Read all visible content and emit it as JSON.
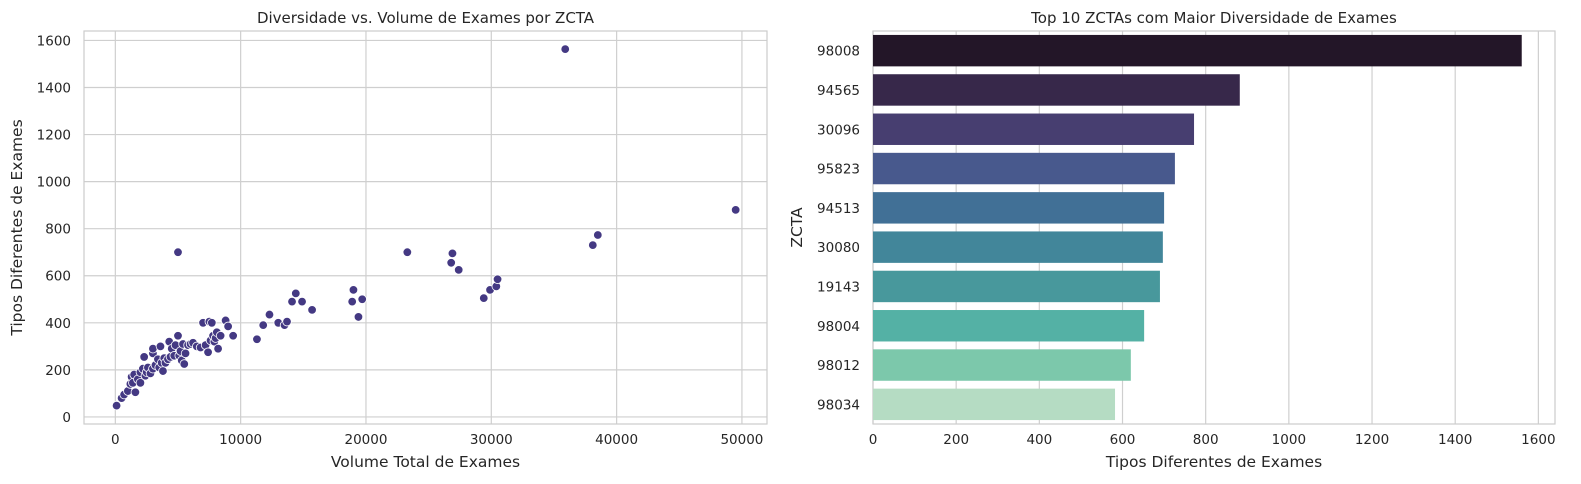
{
  "chart_data": [
    {
      "type": "scatter",
      "title": "Diversidade vs. Volume de Exames por ZCTA",
      "xlabel": "Volume Total de Exames",
      "ylabel": "Tipos Diferentes de Exames",
      "xlim": [
        -2500,
        52000
      ],
      "ylim": [
        -30,
        1640
      ],
      "xticks": [
        0,
        10000,
        20000,
        30000,
        40000,
        50000
      ],
      "xtick_labels": [
        "0",
        "10000",
        "20000",
        "30000",
        "40000",
        "50000"
      ],
      "yticks": [
        0,
        200,
        400,
        600,
        800,
        1000,
        1200,
        1400,
        1600
      ],
      "ytick_labels": [
        "0",
        "200",
        "400",
        "600",
        "800",
        "1000",
        "1200",
        "1400",
        "1600"
      ],
      "grid": true,
      "marker_color": "#443983",
      "points": [
        {
          "x": 100,
          "y": 48
        },
        {
          "x": 500,
          "y": 80
        },
        {
          "x": 700,
          "y": 95
        },
        {
          "x": 1000,
          "y": 110
        },
        {
          "x": 1200,
          "y": 140
        },
        {
          "x": 1300,
          "y": 170
        },
        {
          "x": 1400,
          "y": 145
        },
        {
          "x": 1500,
          "y": 180
        },
        {
          "x": 1600,
          "y": 105
        },
        {
          "x": 1800,
          "y": 160
        },
        {
          "x": 2000,
          "y": 145
        },
        {
          "x": 2000,
          "y": 190
        },
        {
          "x": 2200,
          "y": 205
        },
        {
          "x": 2300,
          "y": 255
        },
        {
          "x": 2400,
          "y": 175
        },
        {
          "x": 2500,
          "y": 190
        },
        {
          "x": 2600,
          "y": 210
        },
        {
          "x": 2800,
          "y": 185
        },
        {
          "x": 3000,
          "y": 205
        },
        {
          "x": 3000,
          "y": 270
        },
        {
          "x": 3000,
          "y": 290
        },
        {
          "x": 3200,
          "y": 220
        },
        {
          "x": 3400,
          "y": 245
        },
        {
          "x": 3500,
          "y": 210
        },
        {
          "x": 3600,
          "y": 300
        },
        {
          "x": 3700,
          "y": 230
        },
        {
          "x": 3800,
          "y": 195
        },
        {
          "x": 3900,
          "y": 250
        },
        {
          "x": 4000,
          "y": 230
        },
        {
          "x": 4200,
          "y": 245
        },
        {
          "x": 4300,
          "y": 320
        },
        {
          "x": 4400,
          "y": 255
        },
        {
          "x": 4500,
          "y": 290
        },
        {
          "x": 4700,
          "y": 260
        },
        {
          "x": 4800,
          "y": 305
        },
        {
          "x": 5000,
          "y": 700
        },
        {
          "x": 5000,
          "y": 345
        },
        {
          "x": 5100,
          "y": 260
        },
        {
          "x": 5200,
          "y": 280
        },
        {
          "x": 5300,
          "y": 240
        },
        {
          "x": 5400,
          "y": 310
        },
        {
          "x": 5500,
          "y": 225
        },
        {
          "x": 5600,
          "y": 270
        },
        {
          "x": 5800,
          "y": 305
        },
        {
          "x": 6000,
          "y": 310
        },
        {
          "x": 6200,
          "y": 315
        },
        {
          "x": 6500,
          "y": 300
        },
        {
          "x": 6800,
          "y": 295
        },
        {
          "x": 7000,
          "y": 400
        },
        {
          "x": 7200,
          "y": 305
        },
        {
          "x": 7400,
          "y": 275
        },
        {
          "x": 7500,
          "y": 405
        },
        {
          "x": 7600,
          "y": 325
        },
        {
          "x": 7700,
          "y": 400
        },
        {
          "x": 7800,
          "y": 345
        },
        {
          "x": 7900,
          "y": 320
        },
        {
          "x": 8000,
          "y": 335
        },
        {
          "x": 8100,
          "y": 360
        },
        {
          "x": 8200,
          "y": 290
        },
        {
          "x": 8400,
          "y": 345
        },
        {
          "x": 8800,
          "y": 410
        },
        {
          "x": 9000,
          "y": 385
        },
        {
          "x": 9400,
          "y": 345
        },
        {
          "x": 11300,
          "y": 330
        },
        {
          "x": 11800,
          "y": 390
        },
        {
          "x": 12300,
          "y": 435
        },
        {
          "x": 13000,
          "y": 400
        },
        {
          "x": 13500,
          "y": 390
        },
        {
          "x": 13700,
          "y": 405
        },
        {
          "x": 14100,
          "y": 490
        },
        {
          "x": 14400,
          "y": 525
        },
        {
          "x": 14900,
          "y": 490
        },
        {
          "x": 15700,
          "y": 455
        },
        {
          "x": 18900,
          "y": 490
        },
        {
          "x": 19000,
          "y": 540
        },
        {
          "x": 19400,
          "y": 425
        },
        {
          "x": 19700,
          "y": 500
        },
        {
          "x": 23300,
          "y": 700
        },
        {
          "x": 26800,
          "y": 655
        },
        {
          "x": 26900,
          "y": 695
        },
        {
          "x": 27400,
          "y": 625
        },
        {
          "x": 29400,
          "y": 505
        },
        {
          "x": 29900,
          "y": 540
        },
        {
          "x": 30400,
          "y": 555
        },
        {
          "x": 30500,
          "y": 585
        },
        {
          "x": 35900,
          "y": 1563
        },
        {
          "x": 38100,
          "y": 730
        },
        {
          "x": 38500,
          "y": 773
        },
        {
          "x": 49500,
          "y": 880
        }
      ]
    },
    {
      "type": "bar",
      "orientation": "horizontal",
      "title": "Top 10 ZCTAs com Maior Diversidade de Exames",
      "xlabel": "Tipos Diferentes de Exames",
      "ylabel": "ZCTA",
      "categories": [
        "98008",
        "94565",
        "30096",
        "95823",
        "94513",
        "30080",
        "19143",
        "98004",
        "98012",
        "98034"
      ],
      "values": [
        1560,
        882,
        772,
        726,
        700,
        697,
        690,
        652,
        620,
        582
      ],
      "colors": [
        "#231628",
        "#37284a",
        "#473e70",
        "#48598d",
        "#417096",
        "#42869a",
        "#48989c",
        "#54b1a5",
        "#7cc8ab",
        "#b5dcc3"
      ],
      "xlim": [
        0,
        1640
      ],
      "xticks": [
        0,
        200,
        400,
        600,
        800,
        1000,
        1200,
        1400,
        1600
      ],
      "xtick_labels": [
        "0",
        "200",
        "400",
        "600",
        "800",
        "1000",
        "1200",
        "1400",
        "1600"
      ],
      "grid": true
    }
  ]
}
